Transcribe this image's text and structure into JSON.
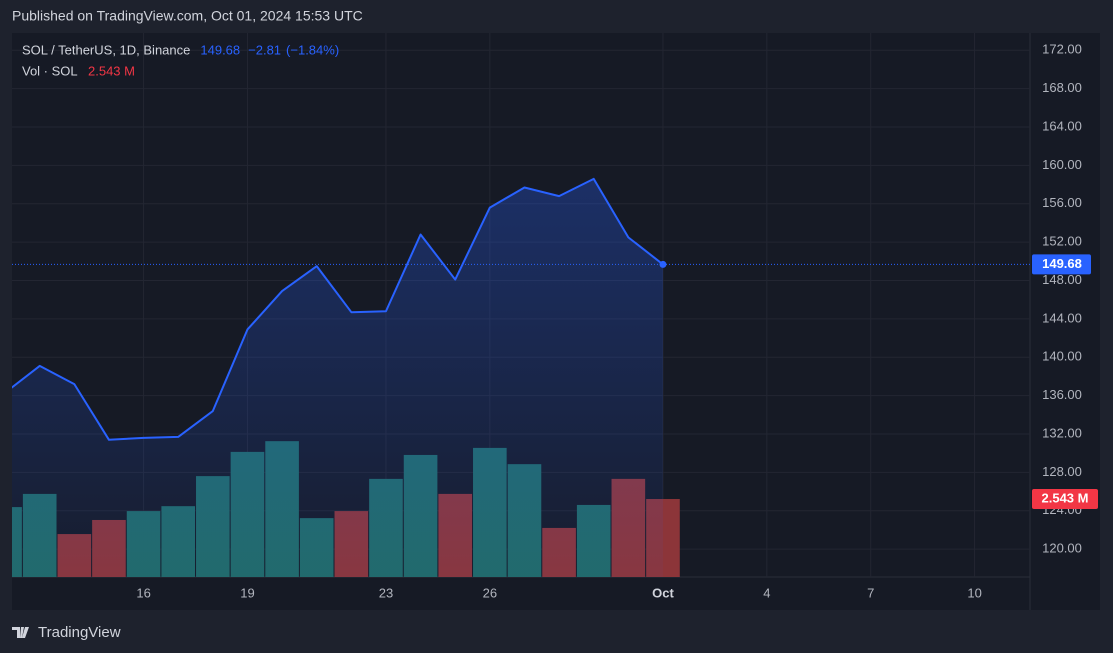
{
  "published": "Published on TradingView.com, Oct 01, 2024 15:53 UTC",
  "brand": "TradingView",
  "chart_data": {
    "type": "line",
    "change": "−2.81",
    "change_pct": "(−1.84%)",
    "x": [
      12,
      13,
      14,
      15,
      16,
      17,
      18,
      19,
      20,
      21,
      22,
      23,
      24,
      25,
      26,
      27,
      28,
      29,
      30,
      31
    ],
    "xlim": [
      12.2,
      41.6
    ],
    "xticks": [
      16,
      19,
      23,
      26,
      {
        "value": 31,
        "label": "Oct"
      },
      {
        "value": 34,
        "label": "4"
      },
      {
        "value": 37,
        "label": "7"
      },
      {
        "value": 40,
        "label": "10"
      }
    ],
    "ylim": [
      117.1,
      173.8
    ],
    "yticks": [
      {
        "value": 120,
        "label": "120.00"
      },
      {
        "value": 124,
        "label": "124.00"
      },
      {
        "value": 128,
        "label": "128.00"
      },
      {
        "value": 132,
        "label": "132.00"
      },
      {
        "value": 136,
        "label": "136.00"
      },
      {
        "value": 140,
        "label": "140.00"
      },
      {
        "value": 144,
        "label": "144.00"
      },
      {
        "value": 148,
        "label": "148.00"
      },
      {
        "value": 152,
        "label": "152.00"
      },
      {
        "value": 156,
        "label": "156.00"
      },
      {
        "value": 160,
        "label": "160.00"
      },
      {
        "value": 164,
        "label": "164.00"
      },
      {
        "value": 168,
        "label": "168.00"
      },
      {
        "value": 172,
        "label": "172.00"
      }
    ],
    "y2lim": [
      0,
      17.74
    ],
    "grid": true,
    "series": [
      {
        "name": "SOL / TetherUS, 1D, Binance",
        "color": "#2962ff",
        "values": [
          136.3,
          139.1,
          137.2,
          131.4,
          131.6,
          131.7,
          134.4,
          142.9,
          146.9,
          149.5,
          144.7,
          144.8,
          152.8,
          148.1,
          155.6,
          157.7,
          156.8,
          158.6,
          152.5,
          149.68
        ]
      },
      {
        "name": "Vol · SOL",
        "axis": "y2",
        "colors": [
          "#216a67",
          "#216a67",
          "#8c3539",
          "#8c3539",
          "#216a67",
          "#216a67",
          "#216a67",
          "#216a67",
          "#216a67",
          "#216a67",
          "#8c3539",
          "#216a67",
          "#216a67",
          "#8c3539",
          "#216a67",
          "#216a67",
          "#8c3539",
          "#216a67",
          "#8c3539",
          "#8c3539"
        ],
        "values": [
          2.28,
          2.71,
          1.4,
          1.86,
          2.15,
          2.31,
          3.29,
          4.08,
          4.43,
          1.92,
          2.15,
          3.2,
          3.98,
          2.71,
          4.21,
          3.68,
          1.6,
          2.35,
          3.2,
          2.543
        ],
        "value_labels": [
          null,
          null,
          null,
          null,
          null,
          null,
          null,
          null,
          null,
          null,
          null,
          null,
          null,
          null,
          null,
          null,
          null,
          null,
          null,
          "2.543 M"
        ]
      }
    ]
  }
}
